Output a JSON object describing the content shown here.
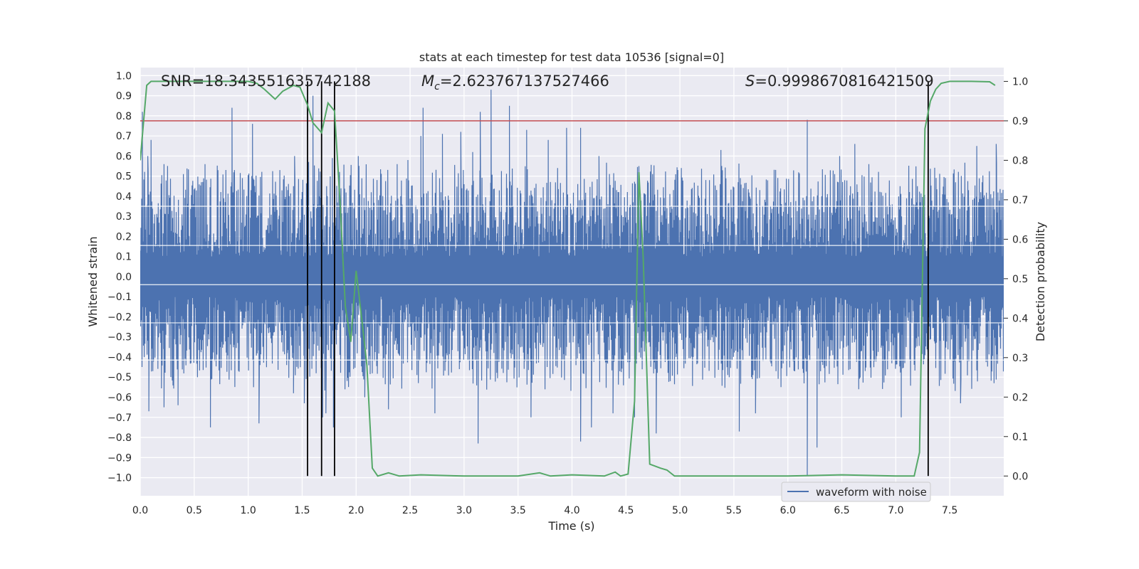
{
  "chart_data": {
    "type": "line",
    "title": "stats at each timestep for test data 10536 [signal=0]",
    "xlabel": "Time (s)",
    "ylabel_left": "Whitened strain",
    "ylabel_right": "Detection probability",
    "xlim": [
      0.0,
      8.0
    ],
    "ylim_left": [
      -1.09,
      1.04
    ],
    "ylim_right": [
      -0.05,
      1.035
    ],
    "xticks": [
      "0.0",
      "0.5",
      "1.0",
      "1.5",
      "2.0",
      "2.5",
      "3.0",
      "3.5",
      "4.0",
      "4.5",
      "5.0",
      "5.5",
      "6.0",
      "6.5",
      "7.0",
      "7.5"
    ],
    "xtick_values": [
      0,
      0.5,
      1,
      1.5,
      2,
      2.5,
      3,
      3.5,
      4,
      4.5,
      5,
      5.5,
      6,
      6.5,
      7,
      7.5
    ],
    "yticks_left": [
      "1.0",
      "0.9",
      "0.8",
      "0.7",
      "0.6",
      "0.5",
      "0.4",
      "0.3",
      "0.2",
      "0.1",
      "0.0",
      "−0.1",
      "−0.2",
      "−0.3",
      "−0.4",
      "−0.5",
      "−0.6",
      "−0.7",
      "−0.8",
      "−0.9",
      "−1.0"
    ],
    "ytick_values_left": [
      1.0,
      0.9,
      0.8,
      0.7,
      0.6,
      0.5,
      0.4,
      0.3,
      0.2,
      0.1,
      0.0,
      -0.1,
      -0.2,
      -0.3,
      -0.4,
      -0.5,
      -0.6,
      -0.7,
      -0.8,
      -0.9,
      -1.0
    ],
    "yticks_right": [
      "1.0",
      "0.9",
      "0.8",
      "0.7",
      "0.6",
      "0.5",
      "0.4",
      "0.3",
      "0.2",
      "0.1",
      "0.0"
    ],
    "ytick_values_right": [
      1.0,
      0.9,
      0.8,
      0.7,
      0.6,
      0.5,
      0.4,
      0.3,
      0.2,
      0.1,
      0.0
    ],
    "annotations": {
      "snr": "SNR=18.343551635742188",
      "mc_symbol": "M",
      "mc_sub": "c",
      "mc_value": "=2.623767137527466",
      "s_symbol": "S",
      "s_value": "=0.9998670816421509"
    },
    "threshold": 0.9,
    "vlines": [
      1.55,
      1.68,
      1.8,
      7.3
    ],
    "legend": {
      "label": "waveform with noise",
      "location": "lower-right"
    },
    "series": [
      {
        "name": "waveform with noise",
        "color": "#4c72b0",
        "note": "dense noisy strain samples, envelope approx ±0.45 with spikes up to ±0.9",
        "envelope": [
          -0.45,
          0.45
        ],
        "spikes_up": [
          [
            0.02,
            0.82
          ],
          [
            0.07,
            0.6
          ],
          [
            0.1,
            0.68
          ],
          [
            0.22,
            0.56
          ],
          [
            0.4,
            0.51
          ],
          [
            0.6,
            0.56
          ],
          [
            0.85,
            0.84
          ],
          [
            1.04,
            0.76
          ],
          [
            1.43,
            0.6
          ],
          [
            1.56,
            0.57
          ],
          [
            1.6,
            0.9
          ],
          [
            1.78,
            0.59
          ],
          [
            2.02,
            0.6
          ],
          [
            2.38,
            0.56
          ],
          [
            2.48,
            0.58
          ],
          [
            2.6,
            0.7
          ],
          [
            2.62,
            0.84
          ],
          [
            2.8,
            0.71
          ],
          [
            2.97,
            0.72
          ],
          [
            3.08,
            0.62
          ],
          [
            3.15,
            0.82
          ],
          [
            3.25,
            0.93
          ],
          [
            3.42,
            0.85
          ],
          [
            3.58,
            0.73
          ],
          [
            3.78,
            0.68
          ],
          [
            3.95,
            0.74
          ],
          [
            4.08,
            0.74
          ],
          [
            4.25,
            0.6
          ],
          [
            4.62,
            0.55
          ],
          [
            5.38,
            0.63
          ],
          [
            6.18,
            0.78
          ],
          [
            6.48,
            0.6
          ],
          [
            6.62,
            0.66
          ],
          [
            6.75,
            0.56
          ],
          [
            7.3,
            0.46
          ],
          [
            7.75,
            0.65
          ],
          [
            7.93,
            0.66
          ]
        ],
        "spikes_down": [
          [
            0.08,
            -0.67
          ],
          [
            0.22,
            -0.65
          ],
          [
            0.35,
            -0.64
          ],
          [
            0.65,
            -0.75
          ],
          [
            1.1,
            -0.73
          ],
          [
            1.42,
            -0.58
          ],
          [
            1.52,
            -0.63
          ],
          [
            1.69,
            -0.7
          ],
          [
            1.72,
            -0.68
          ],
          [
            1.79,
            -0.75
          ],
          [
            2.08,
            -0.6
          ],
          [
            2.3,
            -0.66
          ],
          [
            2.73,
            -0.68
          ],
          [
            3.13,
            -0.83
          ],
          [
            3.62,
            -0.7
          ],
          [
            4.08,
            -0.82
          ],
          [
            4.18,
            -0.75
          ],
          [
            4.38,
            -0.68
          ],
          [
            4.58,
            -0.7
          ],
          [
            4.78,
            -0.78
          ],
          [
            5.55,
            -0.77
          ],
          [
            5.7,
            -0.68
          ],
          [
            6.18,
            -0.99
          ],
          [
            6.27,
            -0.85
          ],
          [
            7.05,
            -0.7
          ],
          [
            7.6,
            -0.63
          ]
        ]
      },
      {
        "name": "detection probability",
        "axis": "right",
        "color": "#55a868",
        "x": [
          0.0,
          0.06,
          0.1,
          0.2,
          0.3,
          0.4,
          0.5,
          0.7,
          0.9,
          1.0,
          1.08,
          1.15,
          1.25,
          1.32,
          1.42,
          1.48,
          1.55,
          1.6,
          1.68,
          1.74,
          1.8,
          1.85,
          1.9,
          1.95,
          2.0,
          2.06,
          2.1,
          2.15,
          2.2,
          2.3,
          2.4,
          2.6,
          3.0,
          3.5,
          3.7,
          3.8,
          4.0,
          4.3,
          4.4,
          4.45,
          4.52,
          4.58,
          4.62,
          4.66,
          4.72,
          4.82,
          4.88,
          4.95,
          5.0,
          5.5,
          6.0,
          6.5,
          7.0,
          7.17,
          7.22,
          7.27,
          7.32,
          7.37,
          7.42,
          7.5,
          7.7,
          7.87,
          7.92
        ],
        "y": [
          0.8,
          0.99,
          1.0,
          1.0,
          1.0,
          1.0,
          1.0,
          1.0,
          1.0,
          1.0,
          0.995,
          0.98,
          0.955,
          0.975,
          0.99,
          0.985,
          0.94,
          0.895,
          0.87,
          0.945,
          0.925,
          0.7,
          0.43,
          0.34,
          0.52,
          0.38,
          0.28,
          0.02,
          0.0,
          0.008,
          0.0,
          0.003,
          0.0,
          0.0,
          0.008,
          0.0,
          0.003,
          0.0,
          0.01,
          0.0,
          0.005,
          0.19,
          0.77,
          0.55,
          0.03,
          0.02,
          0.015,
          0.0,
          0.0,
          0.0,
          0.0,
          0.003,
          0.0,
          0.0,
          0.06,
          0.88,
          0.95,
          0.98,
          0.995,
          1.0,
          1.0,
          0.999,
          0.99
        ]
      }
    ]
  }
}
